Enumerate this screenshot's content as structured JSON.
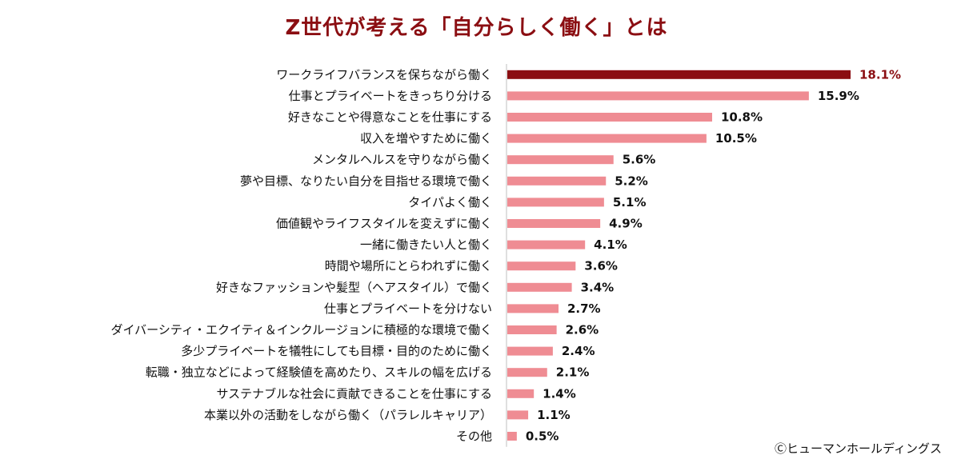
{
  "chart_data": {
    "type": "bar",
    "orientation": "horizontal",
    "title": "Z世代が考える「自分らしく働く」とは",
    "categories": [
      "ワークライフバランスを保ちながら働く",
      "仕事とプライベートをきっちり分ける",
      "好きなことや得意なことを仕事にする",
      "収入を増やすために働く",
      "メンタルヘルスを守りながら働く",
      "夢や目標、なりたい自分を目指せる環境で働く",
      "タイパよく働く",
      "価値観やライフスタイルを変えずに働く",
      "一緒に働きたい人と働く",
      "時間や場所にとらわれずに働く",
      "好きなファッションや髪型（ヘアスタイル）で働く",
      "仕事とプライベートを分けない",
      "ダイバーシティ・エクイティ＆インクルージョンに積極的な環境で働く",
      "多少プライベートを犠牲にしても目標・目的のために働く",
      "転職・独立などによって経験値を高めたり、スキルの幅を広げる",
      "サステナブルな社会に貢献できることを仕事にする",
      "本業以外の活動をしながら働く（パラレルキャリア）",
      "その他"
    ],
    "values": [
      18.1,
      15.9,
      10.8,
      10.5,
      5.6,
      5.2,
      5.1,
      4.9,
      4.1,
      3.6,
      3.4,
      2.7,
      2.6,
      2.4,
      2.1,
      1.4,
      1.1,
      0.5
    ],
    "value_labels": [
      "18.1%",
      "15.9%",
      "10.8%",
      "10.5%",
      "5.6%",
      "5.2%",
      "5.1%",
      "4.9%",
      "4.1%",
      "3.6%",
      "3.4%",
      "2.7%",
      "2.6%",
      "2.4%",
      "2.1%",
      "1.4%",
      "1.1%",
      "0.5%"
    ],
    "unit": "%",
    "highlight_index": 0,
    "colors": {
      "highlight": "#8b0e12",
      "bar": "#ef8c93",
      "axis": "#bfbfbf"
    },
    "grid": false,
    "legend": "none"
  },
  "footer": {
    "copyright": "Ⓒヒューマンホールディングス"
  }
}
